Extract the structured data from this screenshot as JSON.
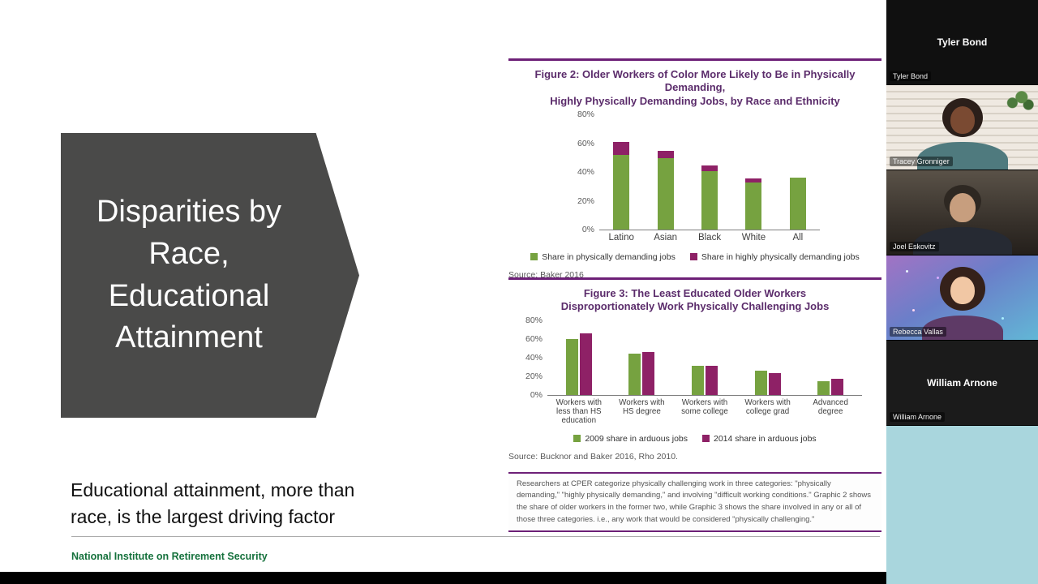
{
  "slide": {
    "arrow_title": "Disparities by Race, Educational Attainment",
    "body_text": "Educational attainment, more than race, is the largest driving factor",
    "footer": "National Institute on Retirement Security"
  },
  "figure2": {
    "title_line1": "Figure 2: Older Workers of Color More Likely to Be in Physically Demanding,",
    "title_line2": "Highly Physically Demanding Jobs, by Race and Ethnicity",
    "source": "Source: Baker 2016"
  },
  "figure3": {
    "title_line1": "Figure 3: The Least Educated Older Workers",
    "title_line2": "Disproportionately Work Physically Challenging Jobs",
    "source": "Source: Bucknor and Baker 2016, Rho 2010.",
    "note": "Researchers at CPER categorize physically challenging work in three categories: \"physically demanding,\" \"highly physically demanding,\" and involving \"difficult working conditions.\" Graphic 2 shows the share of older workers in the former two, while Graphic 3 shows the share involved in any or all of those three categories. i.e., any work that would be considered \"physically challenging.\""
  },
  "chart_data": [
    {
      "id": "fig2",
      "type": "bar",
      "stacked": true,
      "title": "Figure 2: Older Workers of Color More Likely to Be in Physically Demanding, Highly Physically Demanding Jobs, by Race and Ethnicity",
      "categories": [
        "Latino",
        "Asian",
        "Black",
        "White",
        "All"
      ],
      "series": [
        {
          "name": "Share in physically demanding jobs",
          "color": "#76a240",
          "values": [
            52,
            50,
            41,
            33,
            36
          ]
        },
        {
          "name": "Share in highly physically demanding jobs",
          "color": "#8e2166",
          "values": [
            9,
            5,
            4,
            3,
            0
          ]
        }
      ],
      "ylim": [
        0,
        80
      ],
      "yticks": [
        "80%",
        "60%",
        "40%",
        "20%",
        "0%"
      ],
      "grid": false,
      "legend_position": "bottom"
    },
    {
      "id": "fig3",
      "type": "bar",
      "stacked": false,
      "title": "Figure 3: The Least Educated Older Workers Disproportionately Work Physically Challenging Jobs",
      "categories": [
        "Workers with\nless than HS\neducation",
        "Workers with\nHS degree",
        "Workers with\nsome college",
        "Workers with\ncollege grad",
        "Advanced\ndegree"
      ],
      "series": [
        {
          "name": "2009 share in arduous jobs",
          "color": "#76a240",
          "values": [
            60,
            44,
            31,
            26,
            15
          ]
        },
        {
          "name": "2014 share in arduous jobs",
          "color": "#8e2166",
          "values": [
            66,
            46,
            31,
            23,
            17
          ]
        }
      ],
      "ylim": [
        0,
        80
      ],
      "yticks": [
        "80%",
        "60%",
        "40%",
        "20%",
        "0%"
      ],
      "grid": false,
      "legend_position": "bottom"
    }
  ],
  "participants": [
    {
      "name": "Tyler Bond"
    },
    {
      "name": "Tracey Gronniger"
    },
    {
      "name": "Joel Eskovitz"
    },
    {
      "name": "Rebecca Vallas"
    },
    {
      "name": "William Arnone"
    }
  ]
}
